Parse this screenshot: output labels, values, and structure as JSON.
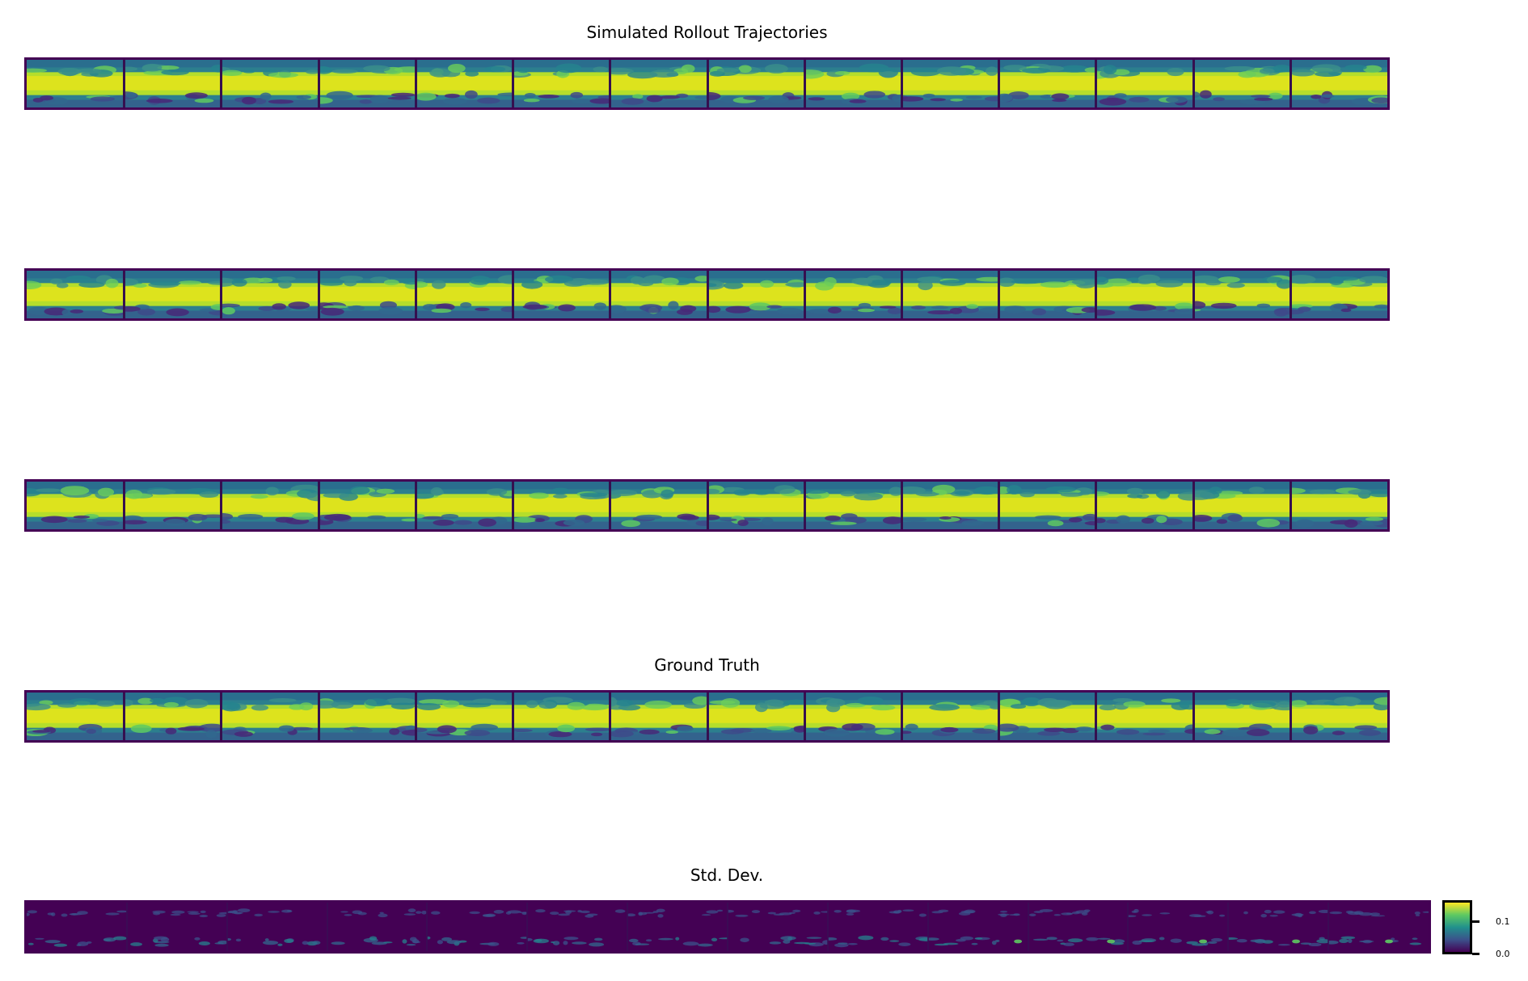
{
  "titles": {
    "simulated": "Simulated Rollout Trajectories",
    "ground_truth": "Ground Truth",
    "std_dev": "Std. Dev."
  },
  "colorbar": {
    "ticks": [
      "0.1",
      "0.0"
    ],
    "colormap": "viridis",
    "range": [
      0.0,
      0.14
    ]
  },
  "colors": {
    "frame": "#440154",
    "low": "#440154",
    "mid": "#21918c",
    "high": "#fde725"
  },
  "chart_data": {
    "type": "heatmap",
    "rows": [
      {
        "group": "Simulated Rollout Trajectories",
        "frames": 14
      },
      {
        "group": "Simulated Rollout Trajectories",
        "frames": 14
      },
      {
        "group": "Simulated Rollout Trajectories",
        "frames": 14
      },
      {
        "group": "Ground Truth",
        "frames": 14
      },
      {
        "group": "Std. Dev.",
        "frames": 14
      }
    ],
    "colorbar_ticks": [
      0.0,
      0.1
    ]
  }
}
